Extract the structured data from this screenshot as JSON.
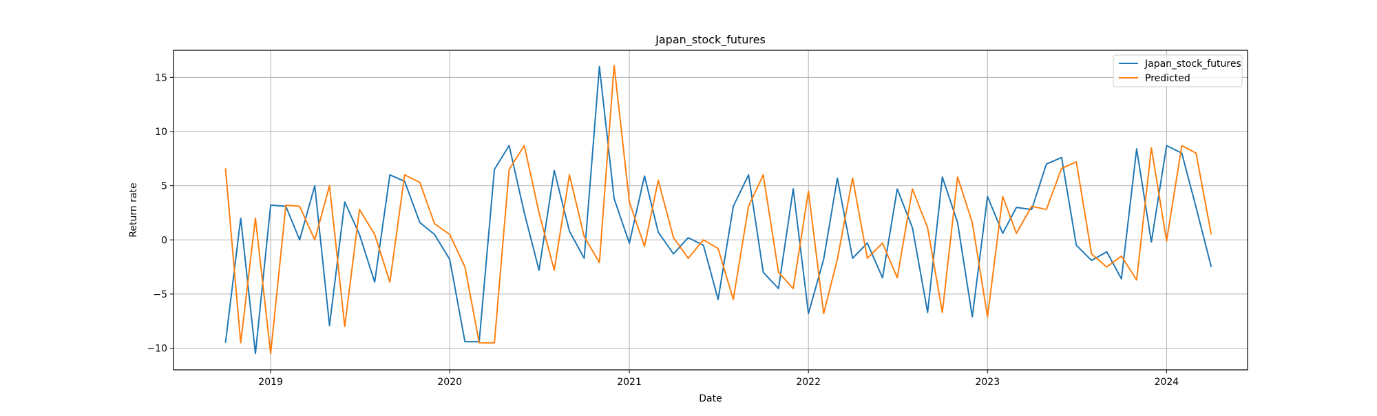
{
  "chart_data": {
    "type": "line",
    "title": "Japan_stock_futures",
    "xlabel": "Date",
    "ylabel": "Return rate",
    "grid": true,
    "legend_position": "top-right",
    "xlim": [
      "2018-06-17",
      "2024-06-14"
    ],
    "ylim": [
      -12,
      17.5
    ],
    "x_ticks": [
      "2019",
      "2020",
      "2021",
      "2022",
      "2023",
      "2024"
    ],
    "y_ticks": [
      -10,
      -5,
      0,
      5,
      10,
      15
    ],
    "y_tick_labels": [
      "−10",
      "−5",
      "0",
      "5",
      "10",
      "15"
    ],
    "x": [
      "2018-10",
      "2018-11",
      "2018-12",
      "2019-01",
      "2019-02",
      "2019-03",
      "2019-04",
      "2019-05",
      "2019-06",
      "2019-07",
      "2019-08",
      "2019-09",
      "2019-10",
      "2019-11",
      "2019-12",
      "2020-01",
      "2020-02",
      "2020-03",
      "2020-04",
      "2020-05",
      "2020-06",
      "2020-07",
      "2020-08",
      "2020-09",
      "2020-10",
      "2020-11",
      "2020-12",
      "2021-01",
      "2021-02",
      "2021-03",
      "2021-04",
      "2021-05",
      "2021-06",
      "2021-07",
      "2021-08",
      "2021-09",
      "2021-10",
      "2021-11",
      "2021-12",
      "2022-01",
      "2022-02",
      "2022-03",
      "2022-04",
      "2022-05",
      "2022-06",
      "2022-07",
      "2022-08",
      "2022-09",
      "2022-10",
      "2022-11",
      "2022-12",
      "2023-01",
      "2023-02",
      "2023-03",
      "2023-04",
      "2023-05",
      "2023-06",
      "2023-07",
      "2023-08",
      "2023-09",
      "2023-10",
      "2023-11",
      "2023-12",
      "2024-01",
      "2024-02",
      "2024-03",
      "2024-04"
    ],
    "series": [
      {
        "name": "Japan_stock_futures",
        "color": "#1f77b4",
        "values": [
          -9.5,
          2.0,
          -10.5,
          3.2,
          3.1,
          0.0,
          5.0,
          -7.9,
          3.5,
          0.5,
          -3.9,
          6.0,
          5.4,
          1.6,
          0.5,
          -1.8,
          -9.4,
          -9.4,
          6.5,
          8.7,
          2.5,
          -2.8,
          6.4,
          0.8,
          -1.7,
          16.0,
          3.8,
          -0.3,
          5.9,
          0.7,
          -1.3,
          0.2,
          -0.5,
          -5.5,
          3.1,
          6.0,
          -3.0,
          -4.5,
          4.7,
          -6.8,
          -1.8,
          5.7,
          -1.7,
          -0.3,
          -3.5,
          4.7,
          1.1,
          -6.7,
          5.8,
          1.6,
          -7.1,
          4.0,
          0.6,
          3.0,
          2.8,
          7.0,
          7.6,
          -0.5,
          -1.9,
          -1.1,
          -3.6,
          8.4,
          -0.2,
          8.7,
          8.0,
          3.0,
          -2.5
        ]
      },
      {
        "name": "Predicted",
        "color": "#ff7f0e",
        "values": [
          6.6,
          -9.5,
          2.0,
          -10.5,
          3.2,
          3.1,
          0.0,
          5.0,
          -8.0,
          2.8,
          0.5,
          -3.9,
          6.0,
          5.3,
          1.5,
          0.5,
          -2.5,
          -9.5,
          -9.5,
          6.5,
          8.7,
          2.5,
          -2.8,
          6.0,
          0.3,
          -2.1,
          16.1,
          3.5,
          -0.6,
          5.5,
          0.2,
          -1.7,
          0.0,
          -0.8,
          -5.5,
          3.1,
          6.0,
          -3.0,
          -4.5,
          4.5,
          -6.8,
          -1.8,
          5.7,
          -1.7,
          -0.3,
          -3.5,
          4.7,
          1.1,
          -6.7,
          5.8,
          1.6,
          -7.1,
          4.0,
          0.6,
          3.1,
          2.8,
          6.6,
          7.2,
          -1.3,
          -2.5,
          -1.5,
          -3.7,
          8.5,
          -0.1,
          8.7,
          8.0,
          0.5
        ]
      }
    ]
  }
}
